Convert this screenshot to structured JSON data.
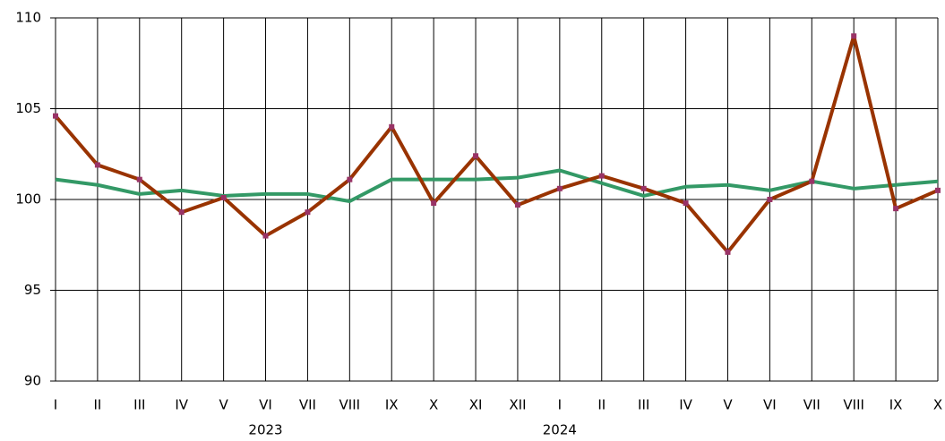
{
  "chart_data": {
    "type": "line",
    "categories": [
      "I",
      "II",
      "III",
      "IV",
      "V",
      "VI",
      "VII",
      "VIII",
      "IX",
      "X",
      "XI",
      "XII",
      "I",
      "II",
      "III",
      "IV",
      "V",
      "VI",
      "VII",
      "VIII",
      "IX",
      "X"
    ],
    "x_groups": [
      "2023",
      "2024"
    ],
    "series": [
      {
        "color": "#339966",
        "values": [
          101.1,
          100.8,
          100.3,
          100.5,
          100.2,
          100.3,
          100.3,
          99.9,
          101.1,
          101.1,
          101.1,
          101.2,
          101.6,
          100.9,
          100.2,
          100.7,
          100.8,
          100.5,
          101.0,
          100.6,
          100.8,
          101.0
        ]
      },
      {
        "color": "#993300",
        "marker_color": "#993366",
        "values": [
          104.6,
          101.9,
          101.1,
          99.3,
          100.1,
          98.0,
          99.3,
          101.1,
          104.0,
          99.8,
          102.4,
          99.7,
          100.6,
          101.3,
          100.6,
          99.8,
          97.1,
          100.0,
          101.0,
          109.0,
          99.5,
          100.5
        ]
      }
    ],
    "ylim": [
      90,
      110
    ],
    "yticks": [
      90,
      95,
      100,
      105,
      110
    ],
    "grid": true
  }
}
